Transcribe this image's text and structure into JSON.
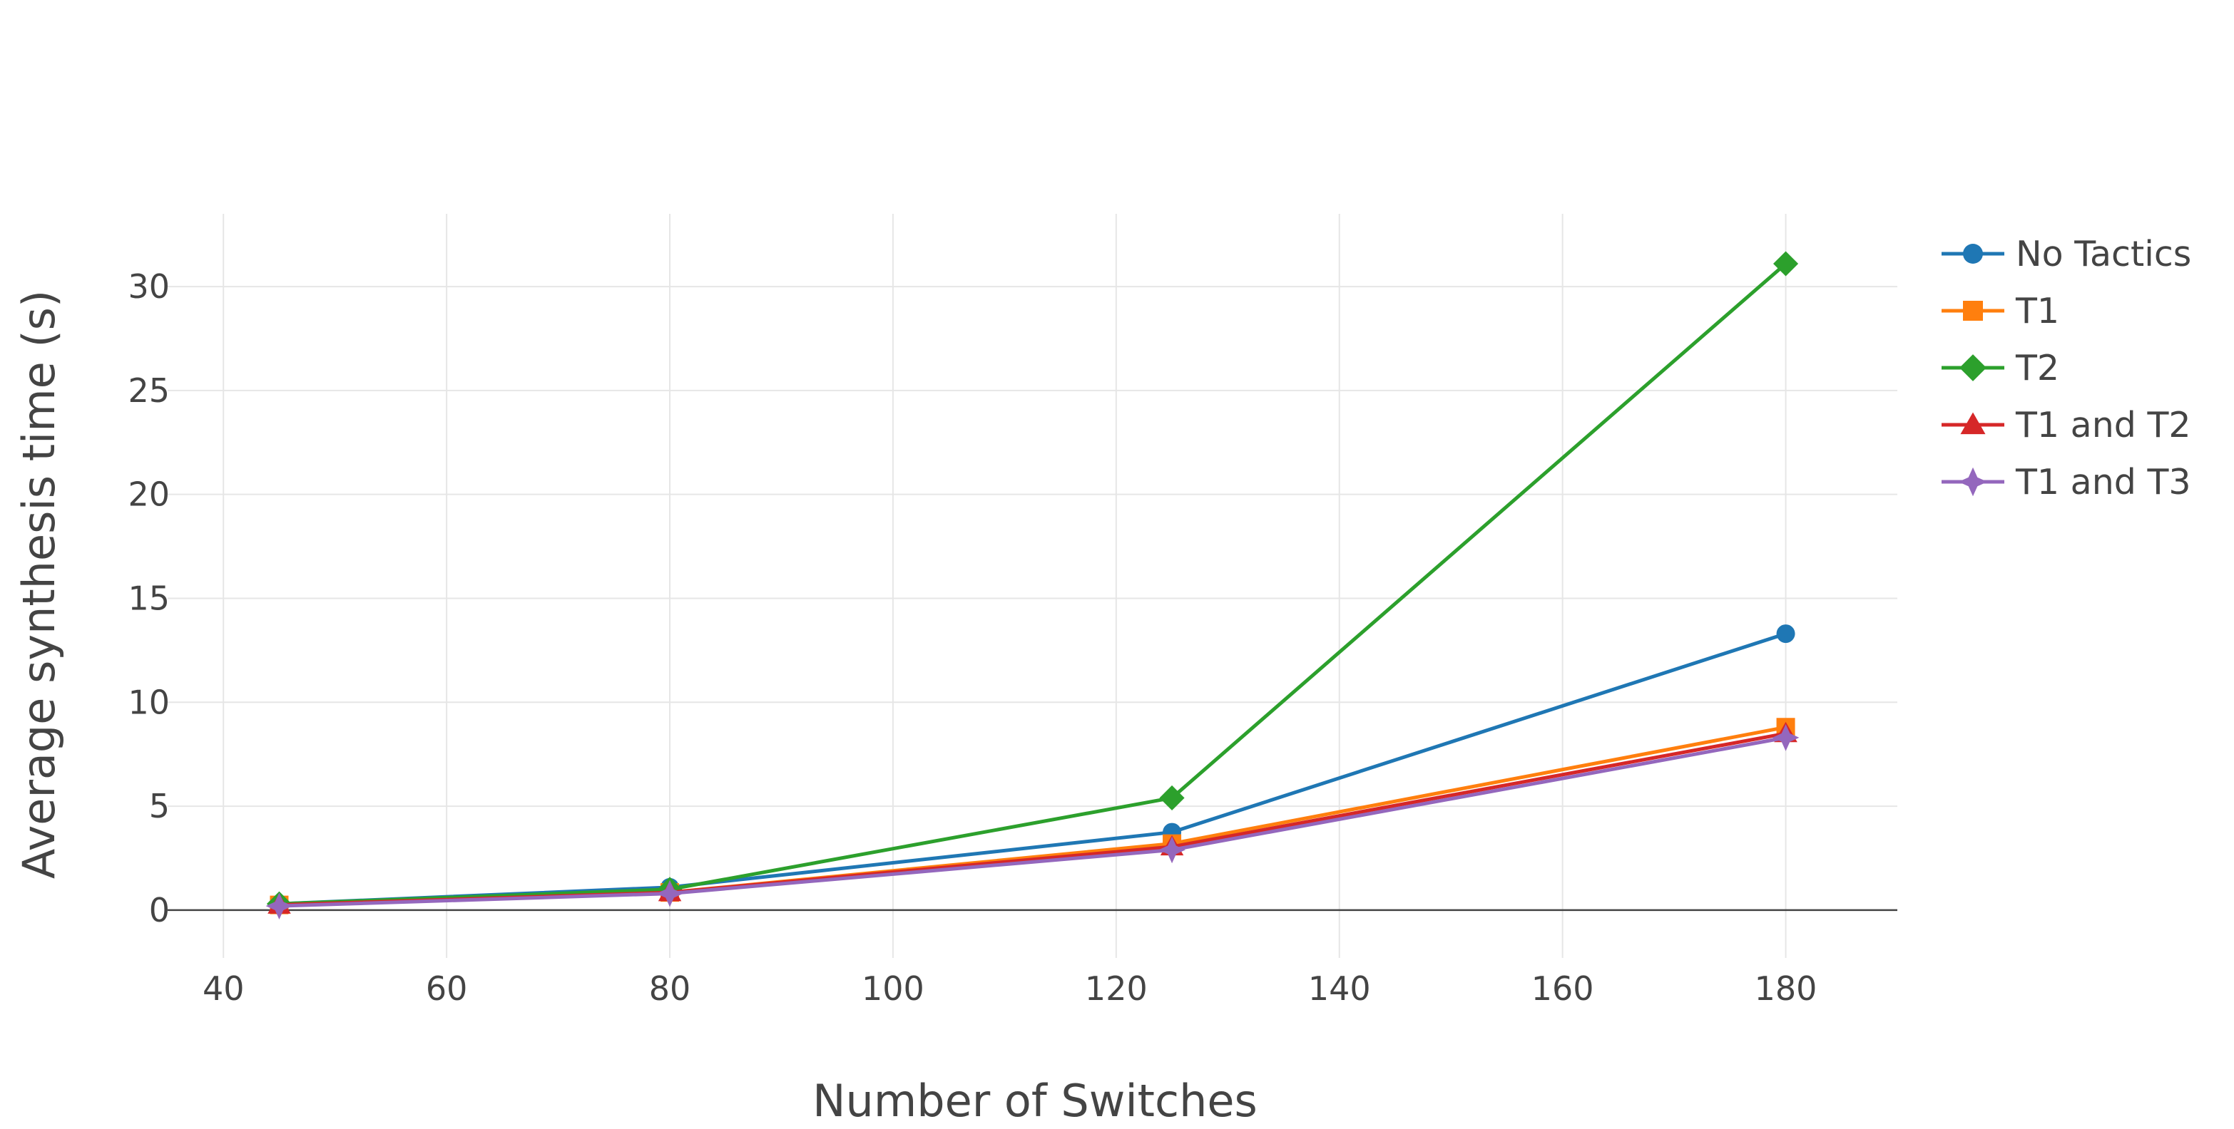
{
  "chart_data": {
    "type": "line",
    "title": "",
    "xlabel": "Number of Switches",
    "ylabel": "Average synthesis time (s)",
    "xlim": [
      35,
      190
    ],
    "ylim": [
      -2.3,
      33.5
    ],
    "xticks": [
      40,
      60,
      80,
      100,
      120,
      140,
      160,
      180
    ],
    "yticks": [
      0,
      5,
      10,
      15,
      20,
      25,
      30
    ],
    "x": [
      45,
      80,
      125,
      180
    ],
    "grid": true,
    "legend_position": "top-right",
    "series": [
      {
        "name": "No Tactics",
        "color": "#1f77b4",
        "marker": "circle",
        "values": [
          0.3,
          1.1,
          3.75,
          13.3
        ]
      },
      {
        "name": "T1",
        "color": "#ff7f0e",
        "marker": "square",
        "values": [
          0.25,
          0.85,
          3.2,
          8.8
        ]
      },
      {
        "name": "T2",
        "color": "#2ca02c",
        "marker": "diamond",
        "values": [
          0.3,
          1.0,
          5.4,
          31.1
        ]
      },
      {
        "name": "T1 and T2",
        "color": "#d62728",
        "marker": "triangle",
        "values": [
          0.25,
          0.85,
          3.05,
          8.5
        ]
      },
      {
        "name": "T1 and T3",
        "color": "#9467bd",
        "marker": "star",
        "values": [
          0.2,
          0.8,
          2.9,
          8.3
        ]
      }
    ]
  }
}
